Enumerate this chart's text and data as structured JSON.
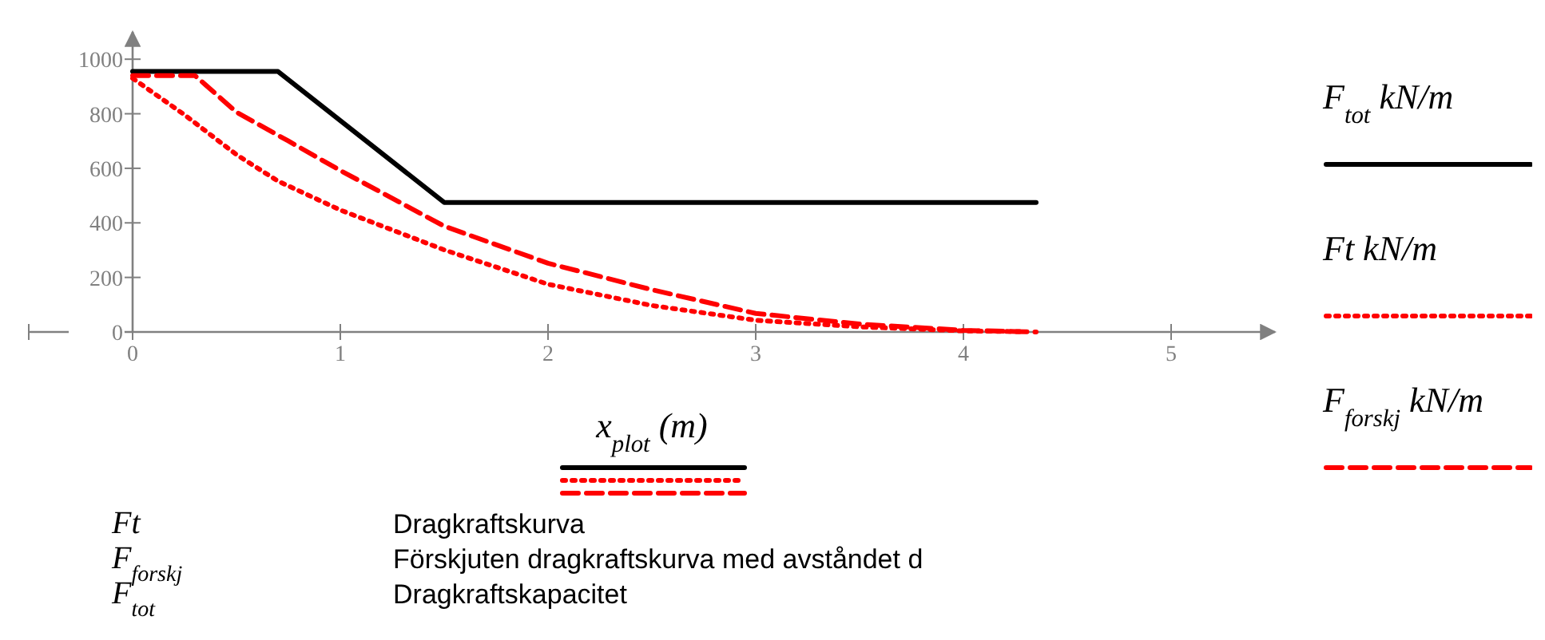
{
  "chart_data": {
    "type": "line",
    "xlabel": "x$_{plot}$ (m)",
    "xlim": [
      -0.5,
      5.5
    ],
    "ylim": [
      0,
      1100
    ],
    "xticks": [
      0,
      1,
      2,
      3,
      4,
      5
    ],
    "yticks": [
      0,
      200,
      400,
      600,
      800,
      1000
    ],
    "grid": false,
    "legend": "right",
    "marker": "none",
    "series": [
      {
        "name": "F$_{tot}$ kN/m",
        "color": "#000000",
        "line_style": "solid",
        "x": [
          0,
          0.7,
          1.5,
          4.35
        ],
        "values": [
          955,
          955,
          475,
          475
        ]
      },
      {
        "name": "Ft kN/m",
        "color": "#ff0000",
        "line_style": "dotted",
        "x": [
          0,
          0.25,
          0.5,
          0.7,
          1,
          1.5,
          2,
          2.5,
          3,
          3.5,
          4,
          4.3
        ],
        "values": [
          930,
          796,
          650,
          553,
          447,
          301,
          175,
          97,
          43,
          19,
          4,
          1
        ]
      },
      {
        "name": "F$_{forskj}$ kN/m",
        "color": "#ff0000",
        "line_style": "dashed",
        "x": [
          0,
          0.3,
          0.5,
          0.75,
          1,
          1.5,
          2,
          2.5,
          3,
          3.5,
          4,
          4.35
        ],
        "values": [
          940,
          940,
          806,
          700,
          592,
          388,
          252,
          155,
          68,
          29,
          6,
          0
        ]
      }
    ],
    "annotations": [
      "Ft\tDragkraftskurva",
      "F$_{forskj}$\tFörskjuten dragkraftskurva med avståndet d",
      "F$_{tot}$\tDragkraftskapacitet"
    ]
  }
}
